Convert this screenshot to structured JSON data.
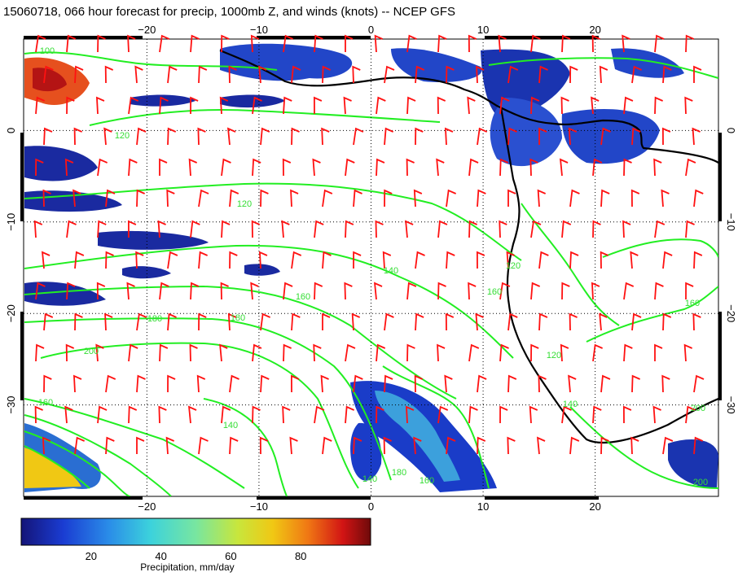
{
  "title": "15060718, 066 hour forecast for precip, 1000mb Z, and winds (knots) -- NCEP GFS",
  "colors": {
    "precip_low": "#1a1aa0",
    "contour": "#22ee22",
    "barb": "#ff1111",
    "coast": "#000000",
    "grid": "#000000"
  },
  "map": {
    "lon_range": [
      -31,
      31
    ],
    "lat_range": [
      -40,
      10
    ],
    "lon_ticks": [
      -20,
      -10,
      0,
      10,
      20
    ],
    "lat_ticks": [
      0,
      -10,
      -20,
      -30
    ],
    "lon_tick_labels": [
      "−20",
      "−10",
      "0",
      "10",
      "20"
    ],
    "lat_tick_labels": [
      "0",
      "−10",
      "−20",
      "−30"
    ],
    "gridlines": true
  },
  "contour_labels": [
    "100",
    "120",
    "120",
    "140",
    "160",
    "160",
    "180",
    "180",
    "200",
    "160",
    "140",
    "140",
    "120",
    "120",
    "140",
    "160",
    "200",
    "160",
    "180",
    "200"
  ],
  "colorbar": {
    "range": [
      0,
      100
    ],
    "ticks": [
      "20",
      "40",
      "60",
      "80"
    ],
    "caption": "Precipitation, mm/day"
  }
}
